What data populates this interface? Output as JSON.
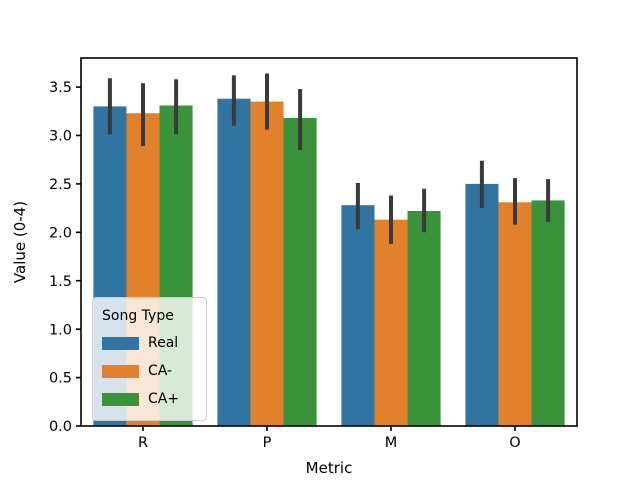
{
  "figure": {
    "background": "#ffffff"
  },
  "chart_data": {
    "type": "bar",
    "title": "",
    "xlabel": "Metric",
    "ylabel": "Value (0-4)",
    "categories": [
      "R",
      "P",
      "M",
      "O"
    ],
    "series": [
      {
        "name": "Real",
        "color": "#3274A1",
        "values": [
          3.3,
          3.38,
          2.28,
          2.5
        ],
        "err_low": [
          3.01,
          3.1,
          2.03,
          2.25
        ],
        "err_high": [
          3.59,
          3.62,
          2.51,
          2.74
        ]
      },
      {
        "name": "CA-",
        "color": "#E1812C",
        "values": [
          3.23,
          3.35,
          2.13,
          2.31
        ],
        "err_low": [
          2.89,
          3.06,
          1.88,
          2.08
        ],
        "err_high": [
          3.54,
          3.64,
          2.38,
          2.56
        ]
      },
      {
        "name": "CA+",
        "color": "#3A923A",
        "values": [
          3.31,
          3.18,
          2.22,
          2.33
        ],
        "err_low": [
          3.01,
          2.85,
          2.0,
          2.11
        ],
        "err_high": [
          3.58,
          3.48,
          2.45,
          2.55
        ]
      }
    ],
    "error_bar_color": "#3A3A3A",
    "ylim": [
      0,
      3.8
    ],
    "yticks": [
      0.0,
      0.5,
      1.0,
      1.5,
      2.0,
      2.5,
      3.0,
      3.5
    ],
    "ytick_labels": [
      "0.0",
      "0.5",
      "1.0",
      "1.5",
      "2.0",
      "2.5",
      "3.0",
      "3.5"
    ],
    "grid": false,
    "legend": {
      "title": "Song Type",
      "position": "lower-left-inside"
    }
  }
}
